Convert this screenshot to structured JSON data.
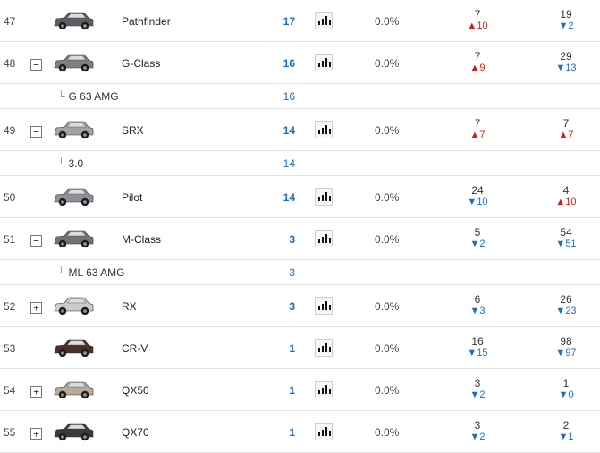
{
  "rows": [
    {
      "rank": "47",
      "toggle": "",
      "name": "Pathfinder",
      "count": "17",
      "share": "0.0%",
      "r1": "7",
      "c1_dir": "up",
      "c1": "10",
      "r2": "19",
      "c2_dir": "down",
      "c2": "2",
      "car_color": "#5a5e63"
    },
    {
      "rank": "48",
      "toggle": "−",
      "name": "G-Class",
      "count": "16",
      "share": "0.0%",
      "r1": "7",
      "c1_dir": "up",
      "c1": "9",
      "r2": "29",
      "c2_dir": "down",
      "c2": "13",
      "car_color": "#7d7f80",
      "sub": {
        "name": "G 63 AMG",
        "count": "16"
      }
    },
    {
      "rank": "49",
      "toggle": "−",
      "name": "SRX",
      "count": "14",
      "share": "0.0%",
      "r1": "7",
      "c1_dir": "up",
      "c1": "7",
      "r2": "7",
      "c2_dir": "up",
      "c2": "7",
      "car_color": "#9ea3a8",
      "sub": {
        "name": "3.0",
        "count": "14"
      }
    },
    {
      "rank": "50",
      "toggle": "",
      "name": "Pilot",
      "count": "14",
      "share": "0.0%",
      "r1": "24",
      "c1_dir": "down",
      "c1": "10",
      "r2": "4",
      "c2_dir": "up",
      "c2": "10",
      "car_color": "#8e9296"
    },
    {
      "rank": "51",
      "toggle": "−",
      "name": "M-Class",
      "count": "3",
      "share": "0.0%",
      "r1": "5",
      "c1_dir": "down",
      "c1": "2",
      "r2": "54",
      "c2_dir": "down",
      "c2": "51",
      "car_color": "#6f7377",
      "sub": {
        "name": "ML 63 AMG",
        "count": "3"
      }
    },
    {
      "rank": "52",
      "toggle": "+",
      "name": "RX",
      "count": "3",
      "share": "0.0%",
      "r1": "6",
      "c1_dir": "down",
      "c1": "3",
      "r2": "26",
      "c2_dir": "down",
      "c2": "23",
      "car_color": "#c9ccd0"
    },
    {
      "rank": "53",
      "toggle": "",
      "name": "CR-V",
      "count": "1",
      "share": "0.0%",
      "r1": "16",
      "c1_dir": "down",
      "c1": "15",
      "r2": "98",
      "c2_dir": "down",
      "c2": "97",
      "car_color": "#4a2f2a"
    },
    {
      "rank": "54",
      "toggle": "+",
      "name": "QX50",
      "count": "1",
      "share": "0.0%",
      "r1": "3",
      "c1_dir": "down",
      "c1": "2",
      "r2": "1",
      "c2_dir": "down",
      "c2": "0",
      "car_color": "#b8aa96"
    },
    {
      "rank": "55",
      "toggle": "+",
      "name": "QX70",
      "count": "1",
      "share": "0.0%",
      "r1": "3",
      "c1_dir": "down",
      "c1": "2",
      "r2": "2",
      "c2_dir": "down",
      "c2": "1",
      "car_color": "#3a3a3c"
    }
  ],
  "icons": {
    "up": "▲",
    "down": "▼",
    "sub_prefix": "└",
    "chart": "bar-chart-icon"
  }
}
